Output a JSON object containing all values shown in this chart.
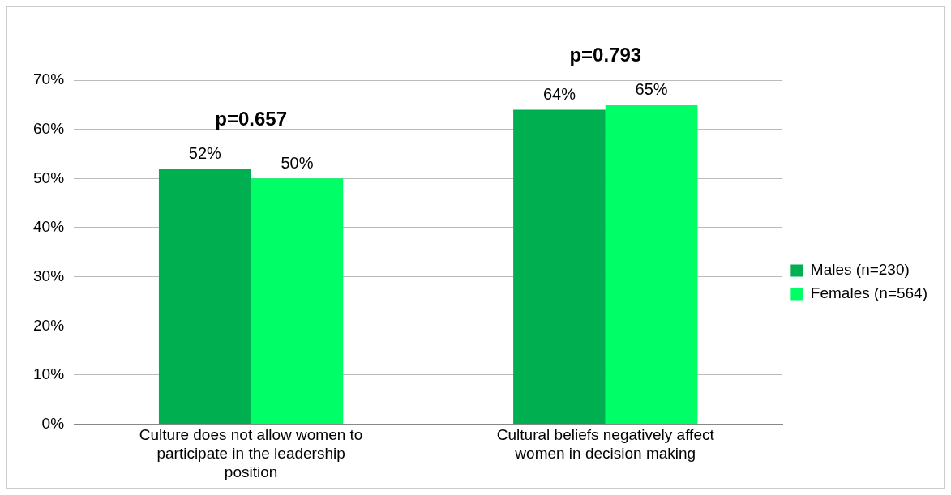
{
  "chart_data": {
    "type": "bar",
    "categories": [
      "Culture does not allow women to participate in the leadership position",
      "Cultural beliefs negatively affect women in decision making"
    ],
    "series": [
      {
        "name": "Males (n=230)",
        "color": "#00b050",
        "values": [
          52,
          64
        ],
        "value_labels": [
          "52%",
          "64%"
        ]
      },
      {
        "name": "Females (n=564)",
        "color": "#00ff66",
        "values": [
          50,
          65
        ],
        "value_labels": [
          "50%",
          "65%"
        ]
      }
    ],
    "ylim": [
      0,
      70
    ],
    "yticks": [
      {
        "value": 0,
        "label": "0%"
      },
      {
        "value": 10,
        "label": "10%"
      },
      {
        "value": 20,
        "label": "20%"
      },
      {
        "value": 30,
        "label": "30%"
      },
      {
        "value": 40,
        "label": "40%"
      },
      {
        "value": 50,
        "label": "50%"
      },
      {
        "value": 60,
        "label": "60%"
      },
      {
        "value": 70,
        "label": "70%"
      }
    ],
    "grid": "y",
    "legend": "right",
    "annotations": [
      "p=0.657",
      "p=0.793"
    ]
  }
}
